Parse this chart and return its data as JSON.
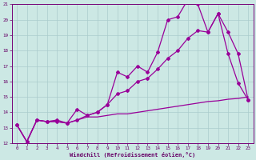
{
  "xlabel": "Windchill (Refroidissement éolien,°C)",
  "background_color": "#cce8e4",
  "grid_color": "#aacccc",
  "line_color": "#990099",
  "xlim": [
    -0.5,
    23.5
  ],
  "ylim": [
    12,
    21
  ],
  "xticks": [
    0,
    1,
    2,
    3,
    4,
    5,
    6,
    7,
    8,
    9,
    10,
    11,
    12,
    13,
    14,
    15,
    16,
    17,
    18,
    19,
    20,
    21,
    22,
    23
  ],
  "yticks": [
    12,
    13,
    14,
    15,
    16,
    17,
    18,
    19,
    20,
    21
  ],
  "line1_x": [
    0,
    1,
    2,
    3,
    4,
    5,
    6,
    7,
    8,
    9,
    10,
    11,
    12,
    13,
    14,
    15,
    16,
    17,
    18,
    19,
    20,
    21,
    22,
    23
  ],
  "line1_y": [
    13.2,
    12.1,
    13.5,
    13.4,
    13.4,
    13.3,
    13.5,
    13.7,
    13.7,
    13.8,
    13.9,
    13.9,
    14.0,
    14.1,
    14.2,
    14.3,
    14.4,
    14.5,
    14.6,
    14.7,
    14.75,
    14.85,
    14.9,
    15.0
  ],
  "line2_x": [
    0,
    1,
    2,
    3,
    4,
    5,
    6,
    7,
    8,
    9,
    10,
    11,
    12,
    13,
    14,
    15,
    16,
    17,
    18,
    19,
    20,
    21,
    22,
    23
  ],
  "line2_y": [
    13.2,
    12.1,
    13.5,
    13.4,
    13.5,
    13.3,
    14.2,
    13.8,
    14.0,
    14.5,
    16.6,
    16.3,
    17.0,
    16.6,
    17.9,
    20.0,
    20.2,
    21.3,
    21.0,
    19.2,
    20.4,
    17.8,
    15.9,
    14.8
  ],
  "line3_x": [
    0,
    1,
    2,
    3,
    4,
    5,
    6,
    7,
    8,
    9,
    10,
    11,
    12,
    13,
    14,
    15,
    16,
    17,
    18,
    19,
    20,
    21,
    22,
    23
  ],
  "line3_y": [
    13.2,
    12.1,
    13.5,
    13.4,
    13.4,
    13.3,
    13.5,
    13.8,
    14.0,
    14.5,
    15.2,
    15.4,
    16.0,
    16.2,
    16.8,
    17.5,
    18.0,
    18.8,
    19.3,
    19.2,
    20.4,
    19.2,
    17.8,
    14.8
  ]
}
